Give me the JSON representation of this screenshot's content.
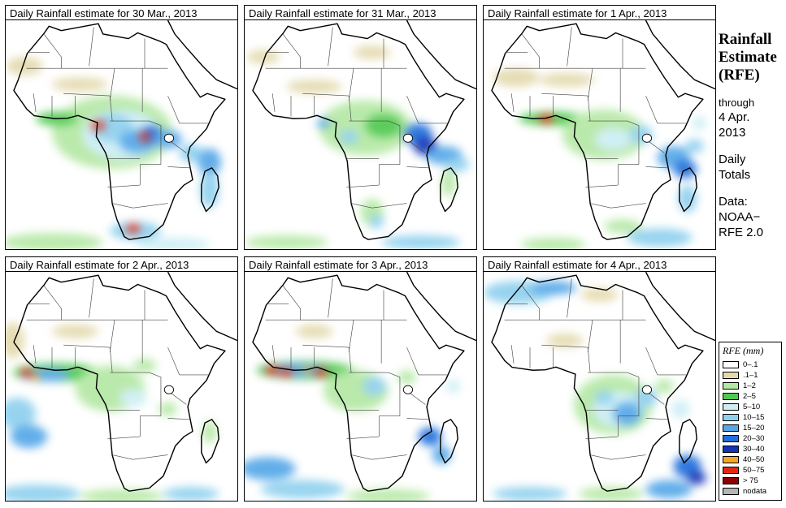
{
  "panels": [
    {
      "title": "Daily Rainfall estimate for 30 Mar., 2013",
      "rain": [
        [
          46,
          49,
          26,
          16,
          2
        ],
        [
          50,
          50,
          17,
          11,
          4
        ],
        [
          46,
          47,
          9,
          6,
          5
        ],
        [
          57,
          53,
          8,
          5,
          6
        ],
        [
          63,
          50,
          5,
          4,
          7
        ],
        [
          40,
          46,
          3,
          2,
          10
        ],
        [
          60,
          51,
          2.5,
          2,
          10
        ],
        [
          70,
          52,
          6,
          4,
          6
        ],
        [
          80,
          58,
          5,
          4,
          5
        ],
        [
          88,
          62,
          5,
          6,
          6
        ],
        [
          56,
          92,
          11,
          4,
          5
        ],
        [
          55,
          91,
          3,
          2,
          10
        ],
        [
          20,
          97,
          22,
          4,
          2
        ],
        [
          72,
          98,
          16,
          3,
          4
        ],
        [
          8,
          20,
          8,
          4,
          1
        ],
        [
          32,
          28,
          12,
          3,
          1
        ],
        [
          88,
          74,
          4,
          8,
          5
        ],
        [
          22,
          43,
          9,
          3,
          3
        ]
      ]
    },
    {
      "title": "Daily Rainfall estimate for 31 Mar., 2013",
      "rain": [
        [
          52,
          47,
          20,
          12,
          2
        ],
        [
          60,
          46,
          8,
          5,
          3
        ],
        [
          75,
          50,
          6,
          5,
          7
        ],
        [
          78,
          55,
          5,
          4,
          8
        ],
        [
          86,
          59,
          8,
          4,
          6
        ],
        [
          92,
          63,
          5,
          3,
          5
        ],
        [
          45,
          51,
          4,
          3,
          5
        ],
        [
          34,
          45,
          3,
          2,
          6
        ],
        [
          30,
          29,
          12,
          3,
          1
        ],
        [
          8,
          16,
          7,
          3,
          1
        ],
        [
          55,
          84,
          5,
          6,
          2
        ],
        [
          57,
          88,
          3,
          3,
          5
        ],
        [
          18,
          97,
          18,
          3,
          2
        ],
        [
          76,
          97,
          17,
          3,
          5
        ],
        [
          88,
          71,
          3,
          6,
          2
        ],
        [
          55,
          14,
          8,
          3,
          1
        ]
      ]
    },
    {
      "title": "Daily Rainfall estimate for 1 Apr., 2013",
      "rain": [
        [
          30,
          43,
          15,
          3,
          3
        ],
        [
          27,
          43,
          3,
          2,
          10
        ],
        [
          52,
          50,
          18,
          11,
          2
        ],
        [
          56,
          52,
          8,
          5,
          4
        ],
        [
          68,
          50,
          5,
          4,
          5
        ],
        [
          82,
          60,
          7,
          5,
          6
        ],
        [
          87,
          65,
          5,
          4,
          7
        ],
        [
          91,
          55,
          4,
          3,
          5
        ],
        [
          14,
          25,
          10,
          4,
          1
        ],
        [
          36,
          26,
          12,
          3,
          1
        ],
        [
          60,
          90,
          8,
          3,
          2
        ],
        [
          76,
          95,
          14,
          4,
          5
        ],
        [
          30,
          98,
          14,
          3,
          2
        ],
        [
          88,
          78,
          4,
          6,
          5
        ],
        [
          93,
          45,
          3,
          3,
          4
        ],
        [
          45,
          44,
          6,
          2,
          2
        ]
      ]
    },
    {
      "title": "Daily Rainfall estimate for 2 Apr., 2013",
      "rain": [
        [
          22,
          44,
          19,
          4,
          3
        ],
        [
          17,
          45,
          11,
          3,
          6
        ],
        [
          9,
          44,
          2.5,
          2,
          10
        ],
        [
          13,
          46,
          2,
          1.5,
          9
        ],
        [
          45,
          51,
          15,
          10,
          2
        ],
        [
          55,
          55,
          6,
          4,
          4
        ],
        [
          5,
          62,
          8,
          7,
          5
        ],
        [
          10,
          72,
          8,
          5,
          6
        ],
        [
          14,
          97,
          18,
          4,
          5
        ],
        [
          50,
          98,
          18,
          3,
          2
        ],
        [
          80,
          97,
          12,
          3,
          5
        ],
        [
          30,
          26,
          10,
          3,
          1
        ],
        [
          60,
          41,
          5,
          3,
          2
        ],
        [
          88,
          70,
          3,
          5,
          2
        ],
        [
          70,
          60,
          4,
          3,
          2
        ],
        [
          3,
          30,
          5,
          8,
          1
        ]
      ]
    },
    {
      "title": "Daily Rainfall estimate for 3 Apr., 2013",
      "rain": [
        [
          26,
          43,
          21,
          4,
          3
        ],
        [
          22,
          43,
          14,
          3,
          6
        ],
        [
          12,
          43,
          3,
          2,
          10
        ],
        [
          18,
          44,
          2.5,
          2,
          10
        ],
        [
          27,
          43,
          2,
          1.5,
          9
        ],
        [
          33,
          44,
          2.5,
          2,
          10
        ],
        [
          48,
          52,
          14,
          9,
          2
        ],
        [
          56,
          50,
          5,
          4,
          5
        ],
        [
          10,
          86,
          12,
          5,
          6
        ],
        [
          25,
          95,
          18,
          4,
          5
        ],
        [
          62,
          98,
          18,
          3,
          2
        ],
        [
          80,
          72,
          5,
          4,
          7
        ],
        [
          85,
          80,
          4,
          4,
          6
        ],
        [
          30,
          26,
          8,
          3,
          1
        ],
        [
          70,
          46,
          4,
          3,
          2
        ],
        [
          90,
          50,
          3,
          3,
          4
        ]
      ]
    },
    {
      "title": "Daily Rainfall estimate for 4 Apr., 2013",
      "rain": [
        [
          56,
          58,
          17,
          13,
          2
        ],
        [
          58,
          60,
          11,
          8,
          4
        ],
        [
          62,
          62,
          6,
          5,
          6
        ],
        [
          52,
          55,
          4,
          3,
          5
        ],
        [
          70,
          55,
          5,
          4,
          5
        ],
        [
          78,
          50,
          4,
          3,
          2
        ],
        [
          15,
          9,
          15,
          5,
          5
        ],
        [
          30,
          7,
          10,
          3,
          6
        ],
        [
          50,
          10,
          8,
          3,
          1
        ],
        [
          88,
          85,
          6,
          5,
          7
        ],
        [
          92,
          90,
          4,
          3,
          8
        ],
        [
          20,
          97,
          16,
          3,
          5
        ],
        [
          55,
          97,
          14,
          3,
          2
        ],
        [
          80,
          95,
          10,
          4,
          6
        ],
        [
          35,
          30,
          8,
          3,
          1
        ],
        [
          85,
          60,
          4,
          4,
          4
        ]
      ]
    }
  ],
  "sidebar": {
    "title_lines": [
      "Rainfall",
      "Estimate",
      "(RFE)"
    ],
    "through_label": "through",
    "date_lines": [
      "4 Apr.",
      "2013"
    ],
    "totals_lines": [
      "Daily",
      "Totals"
    ],
    "data_label": "Data:",
    "source_lines": [
      "NOAA−",
      "RFE 2.0"
    ]
  },
  "legend": {
    "title": "RFE (mm)",
    "items": [
      {
        "label": "0–.1",
        "color": "#ffffff"
      },
      {
        "label": ".1–1",
        "color": "#e3d9ad"
      },
      {
        "label": "1–2",
        "color": "#b5e8a5"
      },
      {
        "label": "2–5",
        "color": "#4fc84f"
      },
      {
        "label": "5–10",
        "color": "#cdeef5"
      },
      {
        "label": "10–15",
        "color": "#8fd0ee"
      },
      {
        "label": "15–20",
        "color": "#55a7e8"
      },
      {
        "label": "20–30",
        "color": "#1f6fdc"
      },
      {
        "label": "30–40",
        "color": "#1233b4"
      },
      {
        "label": "40–50",
        "color": "#f5a623"
      },
      {
        "label": "50–75",
        "color": "#e8260f"
      },
      {
        "label": "> 75",
        "color": "#8f0000"
      },
      {
        "label": "nodata",
        "color": "#b4b4b4"
      }
    ]
  }
}
